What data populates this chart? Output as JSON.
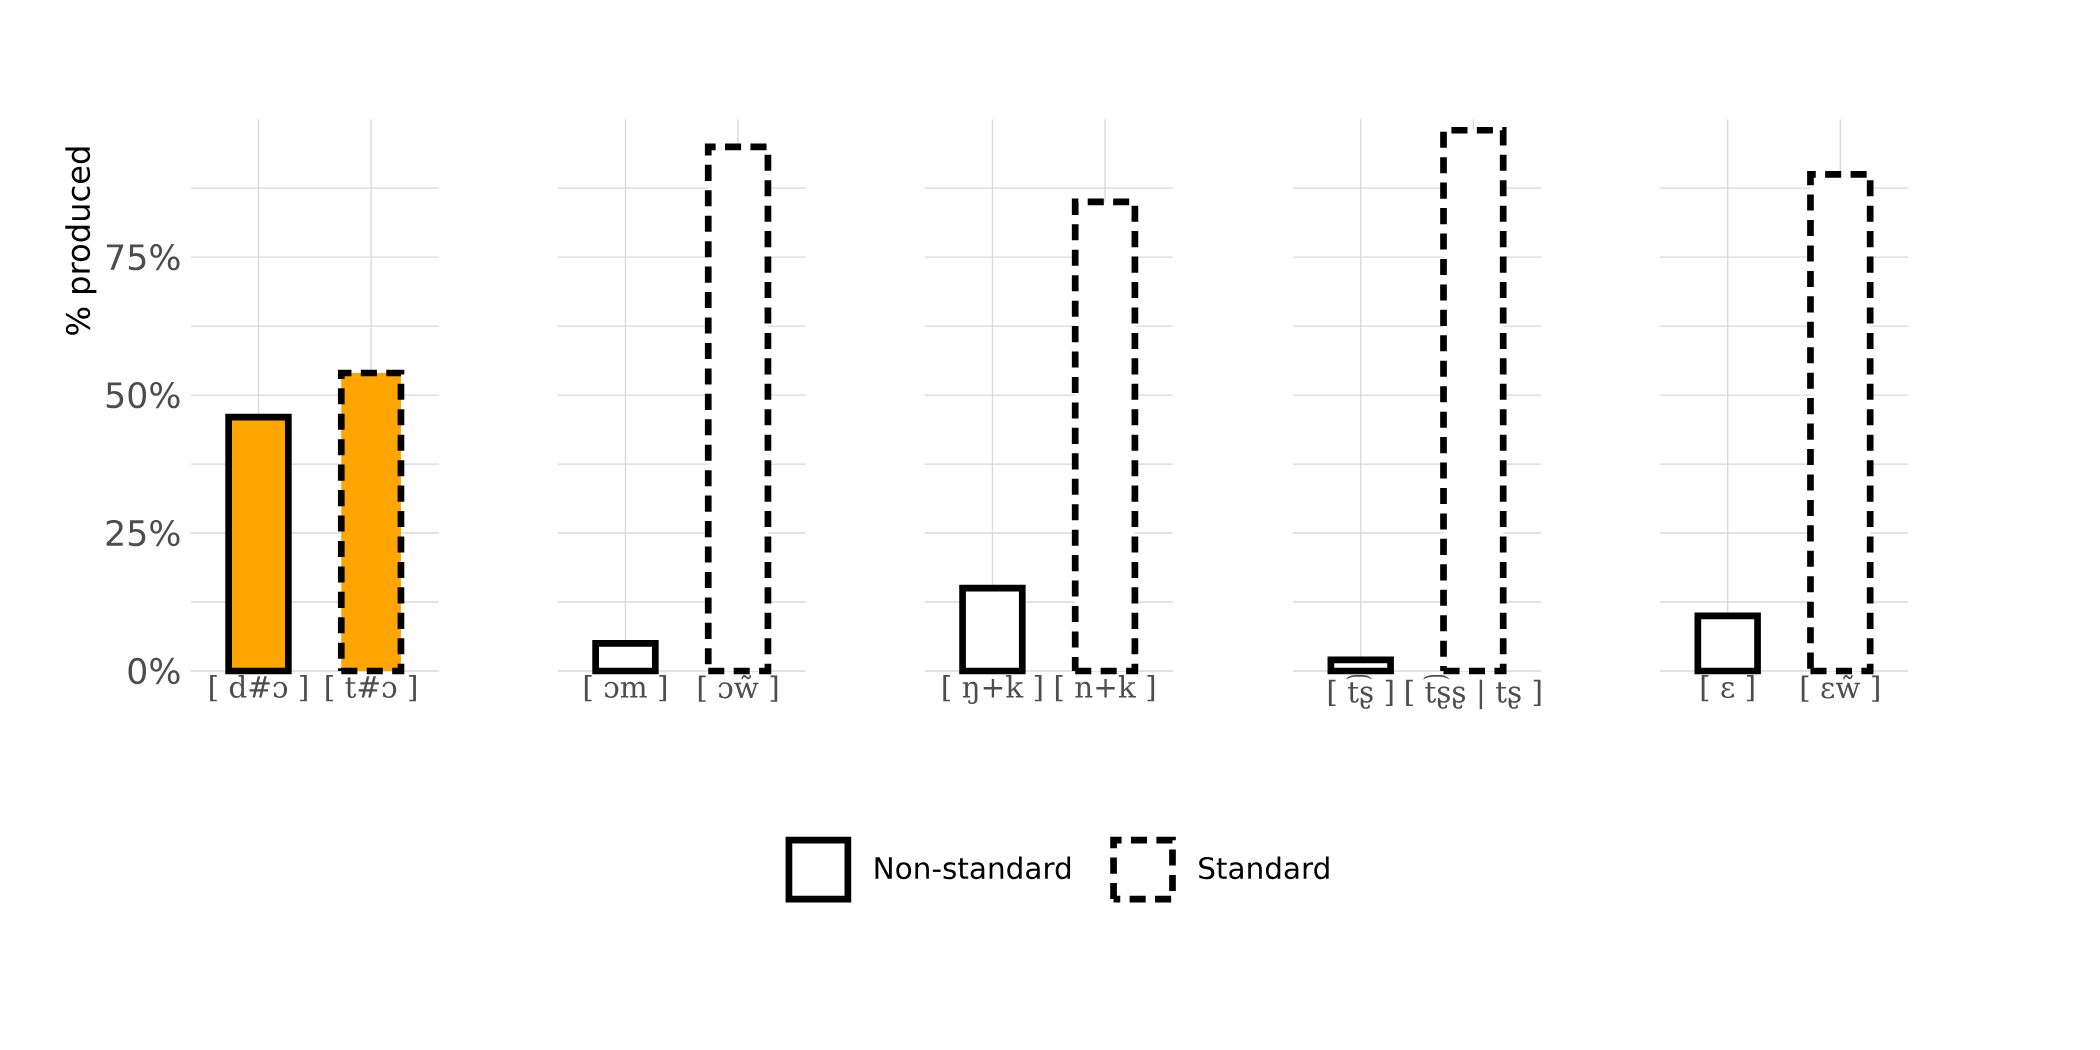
{
  "chart_data": [
    {
      "type": "bar",
      "ylabel": "% produced",
      "categories": [
        "[ d#ɔ ]",
        "[ t#ɔ ]"
      ],
      "ylim": [
        0,
        100
      ],
      "yticks": [
        {
          "value": 0,
          "label": "0%"
        },
        {
          "value": 12.5,
          "label": null
        },
        {
          "value": 25,
          "label": "25%"
        },
        {
          "value": 37.5,
          "label": null
        },
        {
          "value": 50,
          "label": "50%"
        },
        {
          "value": 62.5,
          "label": null
        },
        {
          "value": 75,
          "label": "75%"
        },
        {
          "value": 87.5,
          "label": null
        }
      ],
      "grid": true,
      "series": [
        {
          "color": "#ffa500",
          "line_style": "solid",
          "values": [
            46,
            null
          ]
        },
        {
          "color": "#ffa500",
          "line_style": "dashed",
          "values": [
            null,
            54
          ]
        }
      ]
    },
    {
      "type": "bar",
      "categories": [
        "[ ɔm ]",
        "[ ɔw̃ ]"
      ],
      "ylim": [
        0,
        100
      ],
      "yticks": [
        0,
        12.5,
        25,
        37.5,
        50,
        62.5,
        75,
        87.5
      ],
      "grid": true,
      "tick_labels": "x",
      "series": [
        {
          "color": "#ffffff",
          "line_style": "solid",
          "values": [
            5,
            null
          ]
        },
        {
          "color": "#ffffff",
          "line_style": "dashed",
          "values": [
            null,
            95
          ]
        }
      ]
    },
    {
      "type": "bar",
      "categories": [
        "[ ŋ+k ]",
        "[ n+k ]"
      ],
      "ylim": [
        0,
        100
      ],
      "yticks": [
        0,
        12.5,
        25,
        37.5,
        50,
        62.5,
        75,
        87.5
      ],
      "grid": true,
      "tick_labels": "x",
      "legend": "bottom",
      "series": [
        {
          "name": "Non-standard",
          "color": "#ffffff",
          "line_style": "solid",
          "values": [
            15,
            null
          ]
        },
        {
          "name": "Standard",
          "color": "#ffffff",
          "line_style": "dashed",
          "values": [
            null,
            85
          ]
        }
      ]
    },
    {
      "type": "bar",
      "categories": [
        "[ t͡ʂ ]",
        "[ t͡ʂʂ | tʂ ]"
      ],
      "ylim": [
        0,
        100
      ],
      "yticks": [
        0,
        12.5,
        25,
        37.5,
        50,
        62.5,
        75,
        87.5
      ],
      "grid": true,
      "tick_labels": "x",
      "series": [
        {
          "color": "#ffffff",
          "line_style": "solid",
          "values": [
            2,
            null
          ]
        },
        {
          "color": "#ffffff",
          "line_style": "dashed",
          "values": [
            null,
            98
          ]
        }
      ]
    },
    {
      "type": "bar",
      "categories": [
        "[ ɛ ]",
        "[ ɛw̃ ]"
      ],
      "ylim": [
        0,
        100
      ],
      "yticks": [
        0,
        12.5,
        25,
        37.5,
        50,
        62.5,
        75,
        87.5
      ],
      "grid": true,
      "tick_labels": "x",
      "series": [
        {
          "color": "#ffffff",
          "line_style": "solid",
          "values": [
            10,
            null
          ]
        },
        {
          "color": "#ffffff",
          "line_style": "dashed",
          "values": [
            null,
            90
          ]
        }
      ]
    }
  ]
}
